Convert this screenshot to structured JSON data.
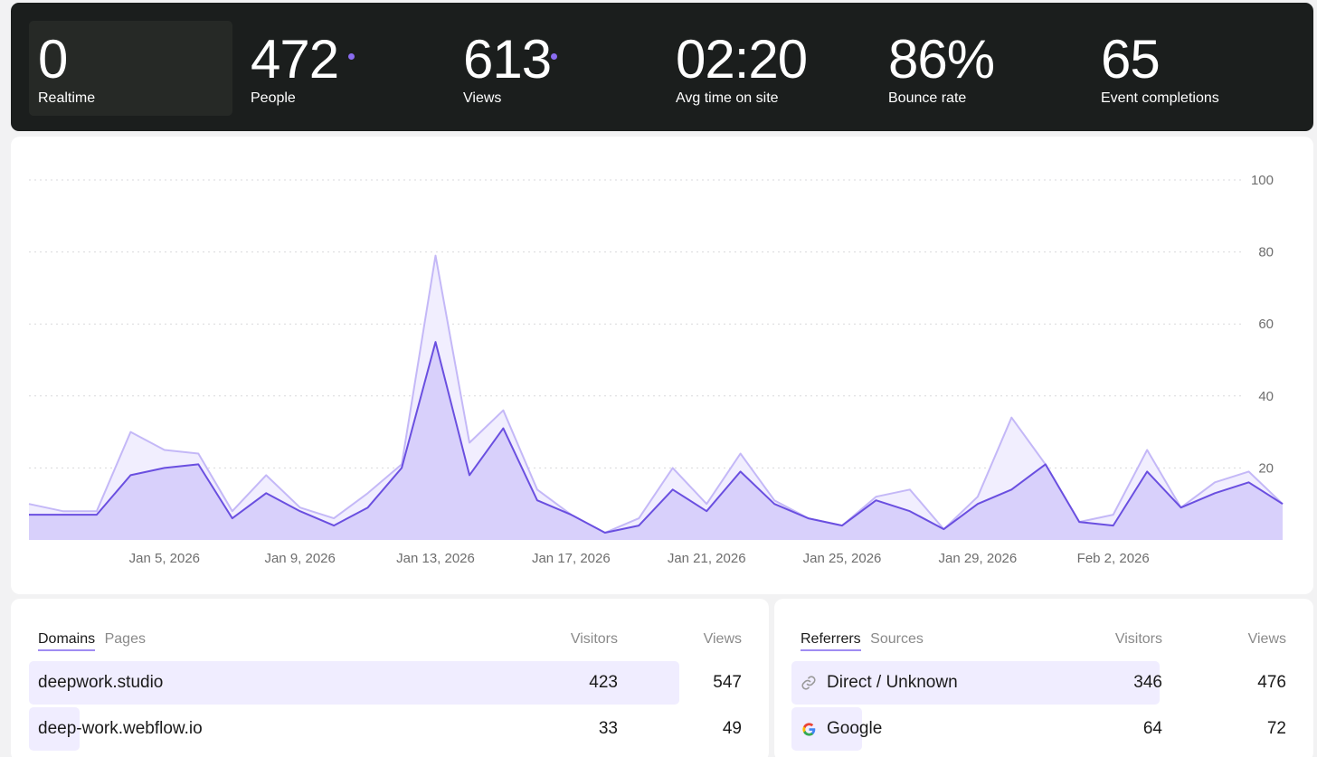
{
  "stats": [
    {
      "value": "0",
      "label": "Realtime"
    },
    {
      "value": "472",
      "label": "People"
    },
    {
      "value": "613",
      "label": "Views"
    },
    {
      "value": "02:20",
      "label": "Avg time on site"
    },
    {
      "value": "86%",
      "label": "Bounce rate"
    },
    {
      "value": "65",
      "label": "Event completions"
    }
  ],
  "chart_data": {
    "type": "area",
    "x_tick_labels": [
      "Jan 5, 2026",
      "Jan 9, 2026",
      "Jan 13, 2026",
      "Jan 17, 2026",
      "Jan 21, 2026",
      "Jan 25, 2026",
      "Jan 29, 2026",
      "Feb 2, 2026"
    ],
    "x_tick_index": [
      4,
      8,
      12,
      16,
      20,
      24,
      28,
      32
    ],
    "y_ticks": [
      20,
      40,
      60,
      80,
      100
    ],
    "ylim": [
      0,
      100
    ],
    "series": [
      {
        "name": "Views",
        "values": [
          10,
          8,
          8,
          30,
          25,
          24,
          8,
          18,
          9,
          6,
          13,
          21,
          79,
          27,
          36,
          14,
          7,
          2,
          6,
          20,
          10,
          24,
          11,
          6,
          4,
          12,
          14,
          3,
          12,
          34,
          21,
          5,
          7,
          25,
          9,
          16,
          19,
          10
        ]
      },
      {
        "name": "Visitors",
        "values": [
          7,
          7,
          7,
          18,
          20,
          21,
          6,
          13,
          8,
          4,
          9,
          20,
          55,
          18,
          31,
          11,
          7,
          2,
          4,
          14,
          8,
          19,
          10,
          6,
          4,
          11,
          8,
          3,
          10,
          14,
          21,
          5,
          4,
          19,
          9,
          13,
          16,
          10
        ]
      }
    ]
  },
  "domains": {
    "tabs": [
      "Domains",
      "Pages"
    ],
    "col_visitors": "Visitors",
    "col_views": "Views",
    "rows": [
      {
        "name": "deepwork.studio",
        "visitors": "423",
        "views": "547",
        "share": 0.92
      },
      {
        "name": "deep-work.webflow.io",
        "visitors": "33",
        "views": "49",
        "share": 0.072
      }
    ]
  },
  "referrers": {
    "tabs": [
      "Referrers",
      "Sources"
    ],
    "col_visitors": "Visitors",
    "col_views": "Views",
    "rows": [
      {
        "name": "Direct / Unknown",
        "visitors": "346",
        "views": "476",
        "icon": "link-icon",
        "share": 0.92
      },
      {
        "name": "Google",
        "visitors": "64",
        "views": "72",
        "icon": "google-icon",
        "share": 0.17
      }
    ]
  },
  "colors": {
    "accent": "#6a4fe0",
    "accent_light": "#c4b8f7",
    "fill": "#d8d0fb",
    "fill_light": "#f1eefe"
  }
}
